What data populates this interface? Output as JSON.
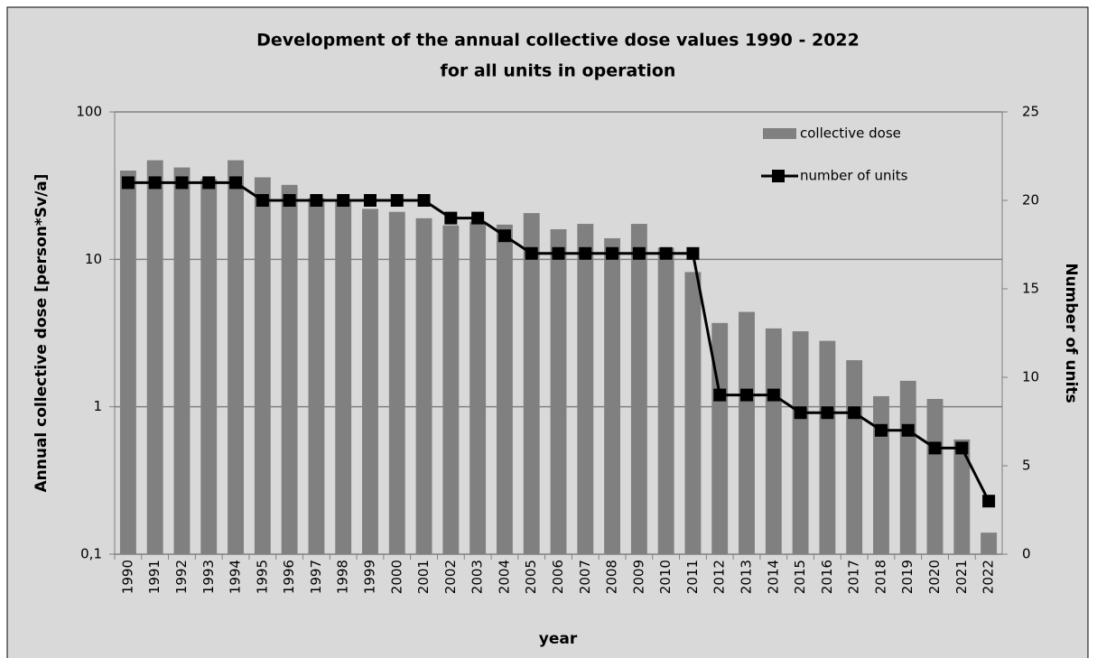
{
  "chart_data": {
    "type": "bar-line",
    "title": "Development of the annual collective dose values 1990 - 2022",
    "subtitle": "for all units in operation",
    "x_label": "year",
    "y_label": "Annual collective dose [person*Sv/a]",
    "y2_label": "Number of units",
    "categories": [
      "1990",
      "1991",
      "1992",
      "1993",
      "1994",
      "1995",
      "1996",
      "1997",
      "1998",
      "1999",
      "2000",
      "2001",
      "2002",
      "2003",
      "2004",
      "2005",
      "2006",
      "2007",
      "2008",
      "2009",
      "2010",
      "2011",
      "2012",
      "2013",
      "2014",
      "2015",
      "2016",
      "2017",
      "2018",
      "2019",
      "2020",
      "2021",
      "2022"
    ],
    "series": [
      {
        "name": "collective dose",
        "color": "#808080",
        "type": "bar",
        "values": [
          40,
          47,
          42,
          35,
          47,
          36,
          32,
          26,
          25,
          22,
          21,
          19,
          17,
          18,
          17.2,
          20.6,
          16,
          17.4,
          13.9,
          17.4,
          12,
          8.2,
          3.7,
          4.4,
          3.4,
          3.25,
          2.8,
          2.07,
          1.18,
          1.5,
          1.13,
          0.6,
          0.14
        ]
      },
      {
        "name": "number of units",
        "color": "#000000",
        "type": "line",
        "axis": "y2",
        "values": [
          21,
          21,
          21,
          21,
          21,
          20,
          20,
          20,
          20,
          20,
          20,
          20,
          19,
          19,
          18,
          17,
          17,
          17,
          17,
          17,
          17,
          17,
          9,
          9,
          9,
          8,
          8,
          8,
          7,
          7,
          6,
          6,
          3
        ]
      }
    ],
    "ylim": [
      0.1,
      100
    ],
    "y_scale": "log",
    "yticks": [
      {
        "value": 0.1,
        "label": "0,1"
      },
      1,
      10,
      100
    ],
    "y2lim": [
      0,
      25
    ],
    "y2ticks": [
      0,
      5,
      10,
      15,
      20,
      25
    ],
    "grid": true,
    "legend": "upper right"
  }
}
